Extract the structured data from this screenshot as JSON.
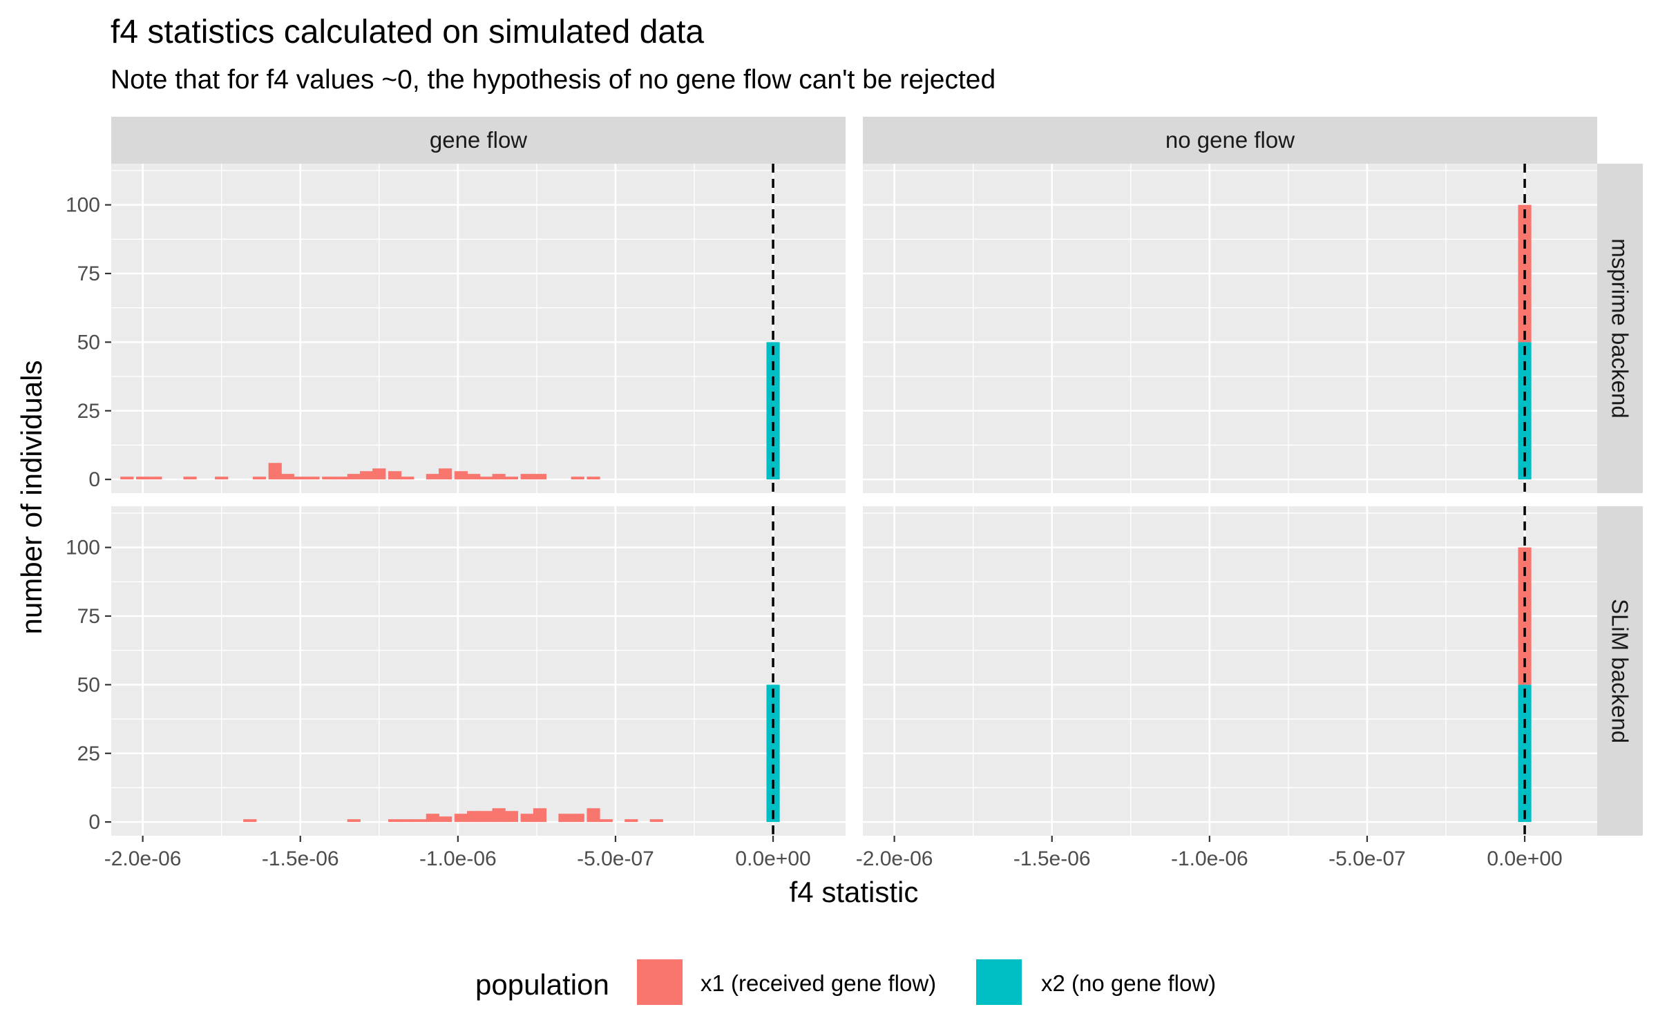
{
  "chart_data": {
    "type": "bar",
    "title": "f4 statistics calculated on simulated data",
    "subtitle": "Note that for f4 values ~0, the hypothesis of no gene flow can't be rejected",
    "xlabel": "f4 statistic",
    "ylabel": "number of individuals",
    "xlim": [
      -2.1e-06,
      2.3e-07
    ],
    "ylim": [
      -5,
      115
    ],
    "x_ticks": [
      -2e-06,
      -1.5e-06,
      -1e-06,
      -5e-07,
      0
    ],
    "x_tick_labels": [
      "-2.0e-06",
      "-1.5e-06",
      "-1.0e-06",
      "-5.0e-07",
      "0.0e+00"
    ],
    "y_ticks": [
      0,
      25,
      50,
      75,
      100
    ],
    "y_tick_labels": [
      "0",
      "25",
      "50",
      "75",
      "100"
    ],
    "vline_x": 0,
    "grid": true,
    "stacked": true,
    "bin_width": 4.2e-08,
    "col_facets": [
      "gene flow",
      "no gene flow"
    ],
    "row_facets": [
      "msprime backend",
      "SLiM backend"
    ],
    "colors": {
      "x1": "#F8766D",
      "x2": "#00BFC4"
    },
    "legend": {
      "title": "population",
      "position": "bottom",
      "entries": [
        "x1 (received gene flow)",
        "x2 (no gene flow)"
      ]
    },
    "panels": [
      {
        "col": "gene flow",
        "row": "msprime backend",
        "series": [
          {
            "name": "x1 (received gene flow)",
            "x": [
              -2.05e-06,
              -2e-06,
              -1.96e-06,
              -1.85e-06,
              -1.75e-06,
              -1.63e-06,
              -1.58e-06,
              -1.54e-06,
              -1.5e-06,
              -1.46e-06,
              -1.41e-06,
              -1.37e-06,
              -1.33e-06,
              -1.29e-06,
              -1.25e-06,
              -1.2e-06,
              -1.16e-06,
              -1.08e-06,
              -1.04e-06,
              -9.9e-07,
              -9.5e-07,
              -9.1e-07,
              -8.7e-07,
              -8.3e-07,
              -7.8e-07,
              -7.4e-07,
              -6.2e-07,
              -5.7e-07
            ],
            "values": [
              1,
              1,
              1,
              1,
              1,
              1,
              6,
              2,
              1,
              1,
              1,
              1,
              2,
              3,
              4,
              3,
              1,
              2,
              4,
              3,
              2,
              1,
              2,
              1,
              2,
              2,
              1,
              1
            ]
          },
          {
            "name": "x2 (no gene flow)",
            "x": [
              0.0
            ],
            "values": [
              50
            ]
          }
        ]
      },
      {
        "col": "no gene flow",
        "row": "msprime backend",
        "series": [
          {
            "name": "x1 (received gene flow)",
            "x": [
              0.0
            ],
            "values": [
              50
            ]
          },
          {
            "name": "x2 (no gene flow)",
            "x": [
              0.0
            ],
            "values": [
              50
            ]
          }
        ]
      },
      {
        "col": "gene flow",
        "row": "SLiM backend",
        "series": [
          {
            "name": "x1 (received gene flow)",
            "x": [
              -1.66e-06,
              -1.33e-06,
              -1.2e-06,
              -1.16e-06,
              -1.12e-06,
              -1.08e-06,
              -1.04e-06,
              -9.9e-07,
              -9.5e-07,
              -9.1e-07,
              -8.7e-07,
              -8.3e-07,
              -7.8e-07,
              -7.4e-07,
              -7e-07,
              -6.6e-07,
              -6.2e-07,
              -5.7e-07,
              -5.3e-07,
              -4.5e-07,
              -3.7e-07
            ],
            "values": [
              1,
              1,
              1,
              1,
              1,
              3,
              2,
              3,
              4,
              4,
              5,
              4,
              3,
              5,
              0,
              3,
              3,
              5,
              1,
              1,
              1
            ]
          },
          {
            "name": "x2 (no gene flow)",
            "x": [
              0.0
            ],
            "values": [
              50
            ]
          }
        ]
      },
      {
        "col": "no gene flow",
        "row": "SLiM backend",
        "series": [
          {
            "name": "x1 (received gene flow)",
            "x": [
              0.0
            ],
            "values": [
              50
            ]
          },
          {
            "name": "x2 (no gene flow)",
            "x": [
              0.0
            ],
            "values": [
              50
            ]
          }
        ]
      }
    ]
  }
}
